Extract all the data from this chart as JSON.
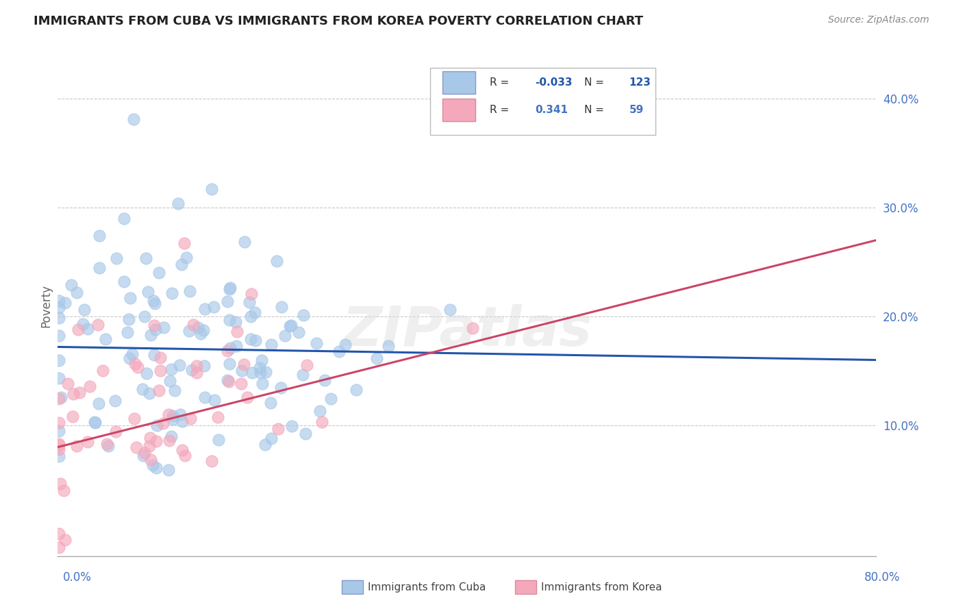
{
  "title": "IMMIGRANTS FROM CUBA VS IMMIGRANTS FROM KOREA POVERTY CORRELATION CHART",
  "source": "Source: ZipAtlas.com",
  "ylabel": "Poverty",
  "xrange": [
    0.0,
    0.8
  ],
  "yrange": [
    -0.02,
    0.44
  ],
  "cuba_color": "#A8C8E8",
  "korea_color": "#F4A8BC",
  "cuba_line_color": "#2255AA",
  "korea_line_color": "#CC4466",
  "legend_r_cuba": "-0.033",
  "legend_n_cuba": "123",
  "legend_r_korea": "0.341",
  "legend_n_korea": "59",
  "watermark": "ZIPatlas",
  "background_color": "#FFFFFF",
  "grid_color": "#C8C8C8",
  "title_color": "#222222",
  "axis_label_color": "#4472C4",
  "cuba_R": -0.033,
  "cuba_N": 123,
  "korea_R": 0.341,
  "korea_N": 59,
  "cuba_line_y0": 0.172,
  "cuba_line_y1": 0.16,
  "korea_line_y0": 0.08,
  "korea_line_y1": 0.27
}
